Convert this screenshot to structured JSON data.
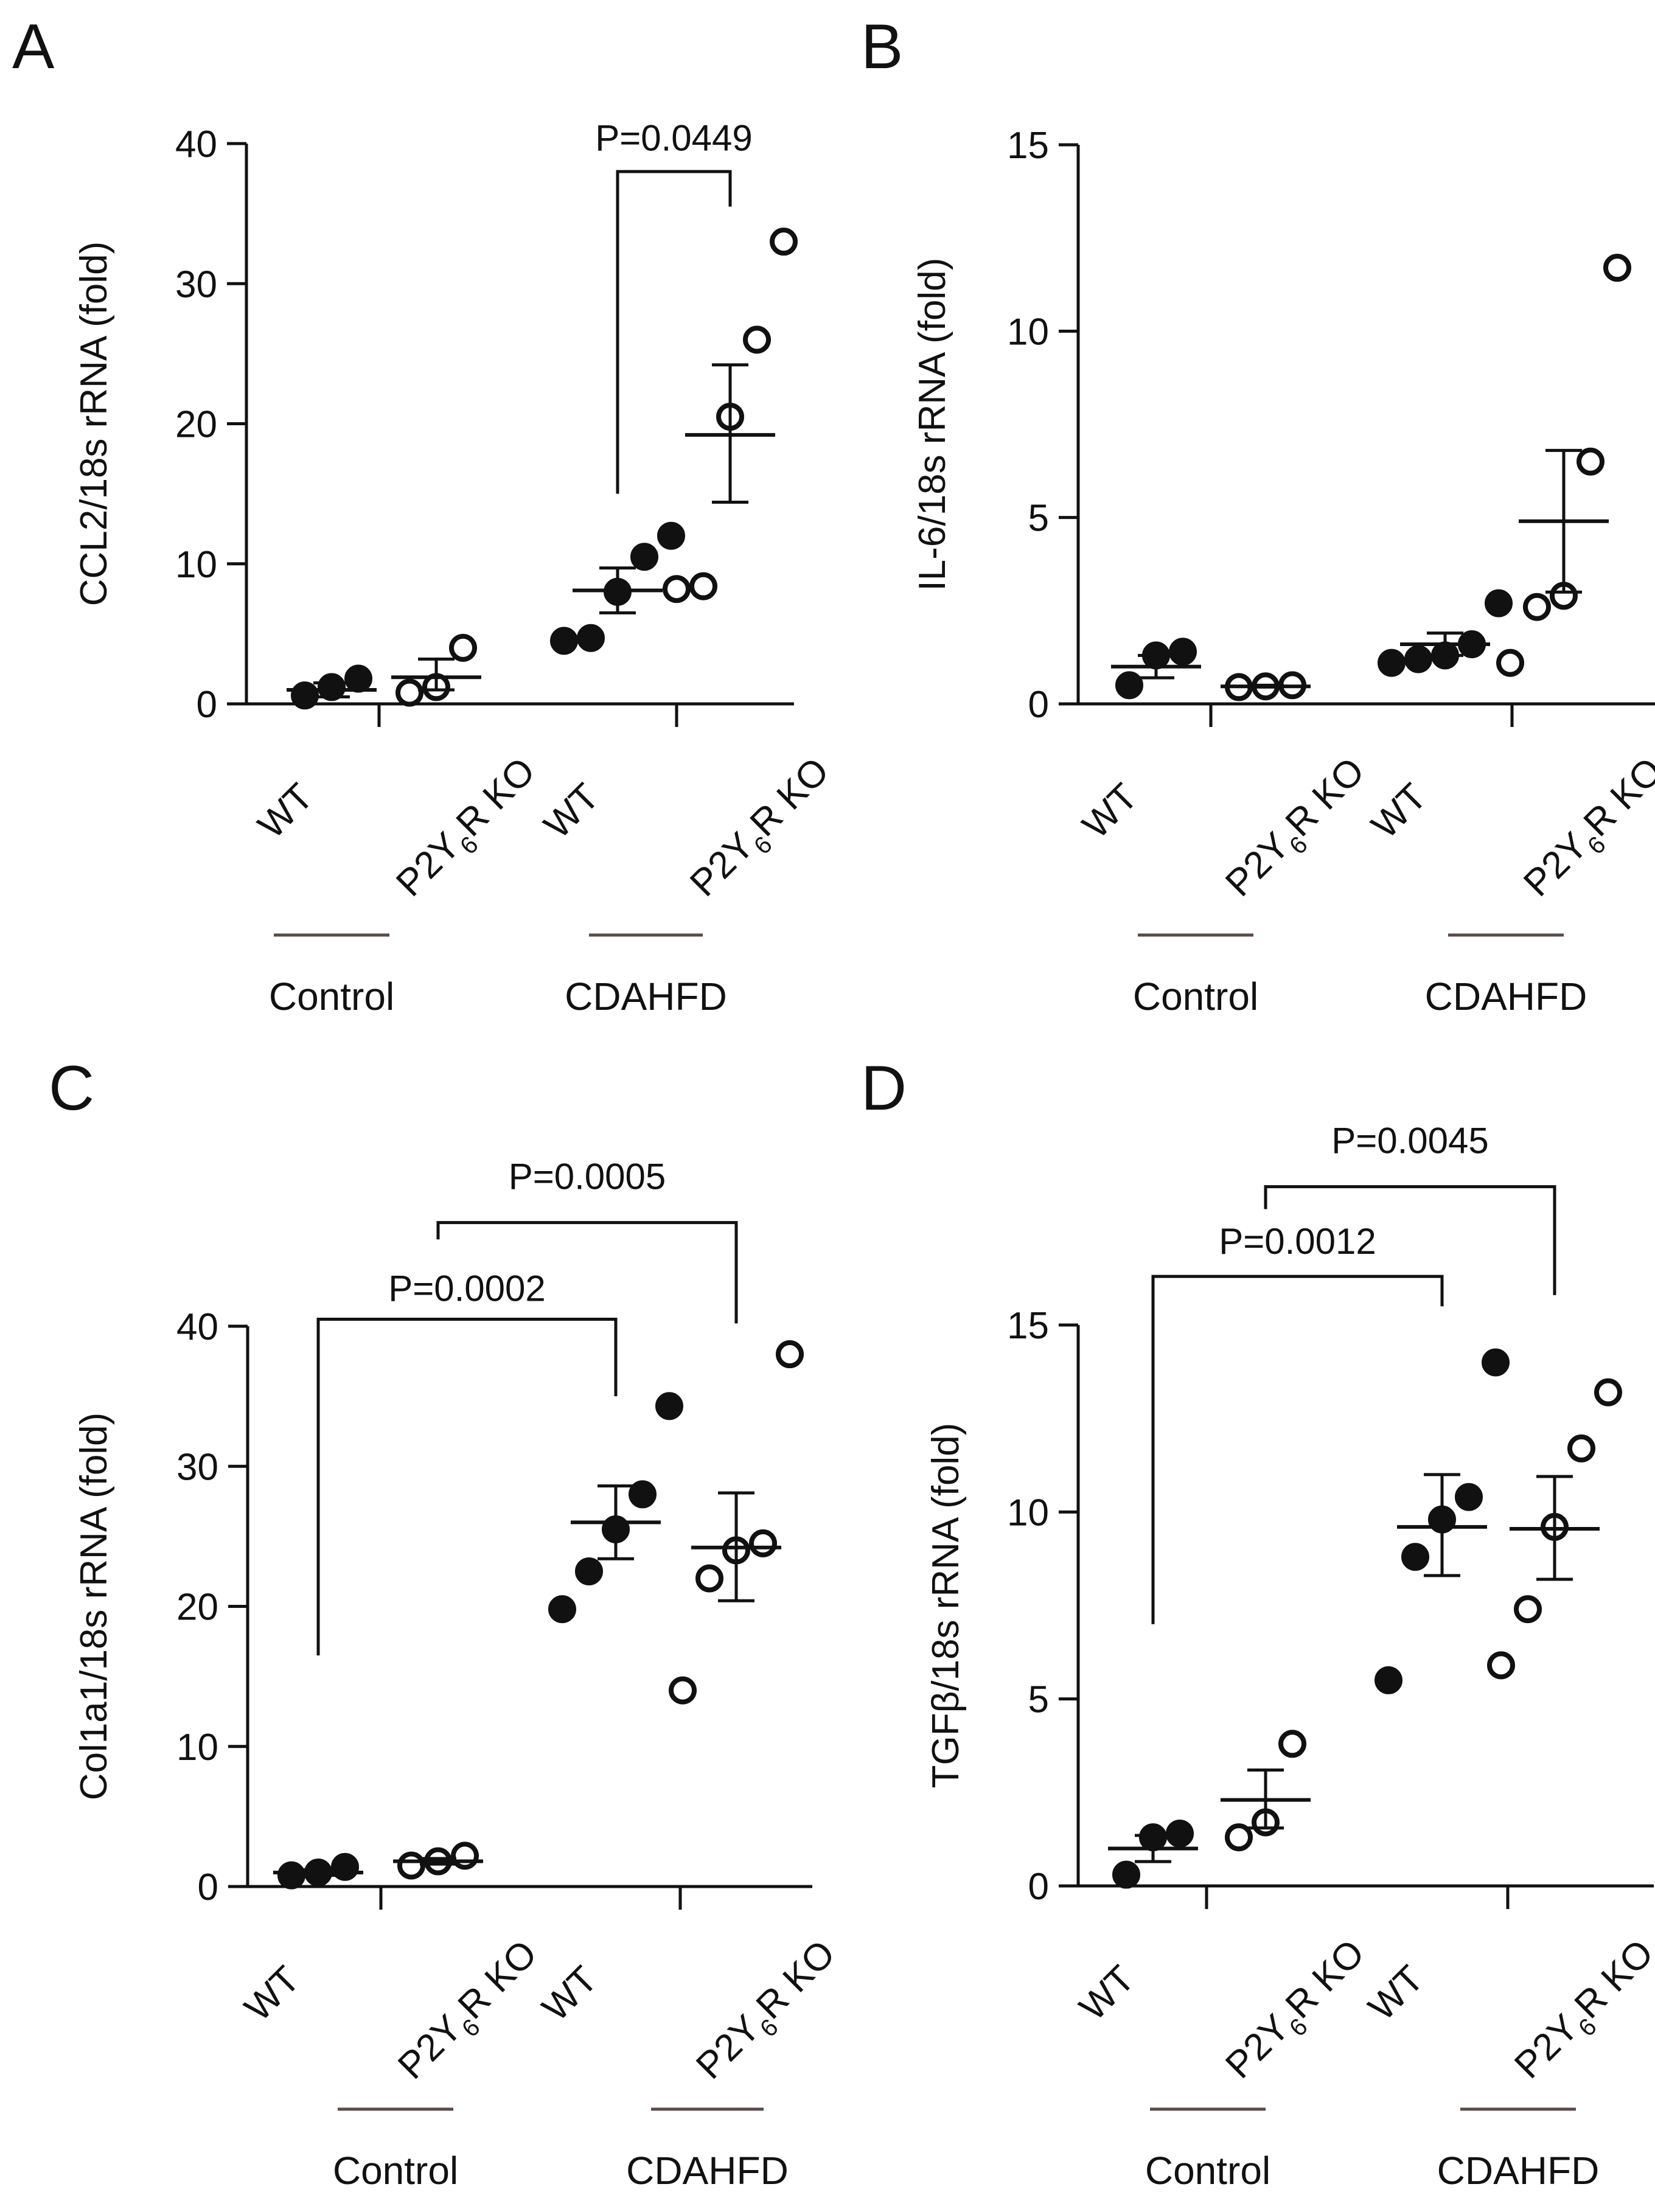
{
  "figure": {
    "panels": [
      "A",
      "B",
      "C",
      "D"
    ]
  },
  "colors": {
    "ink": "#111111",
    "group_bar": "#5a4a4a",
    "background": "#ffffff"
  },
  "chart_data": [
    {
      "panel": "A",
      "type": "scatter",
      "ylabel": "CCL2/18s rRNA (fold)",
      "ylim": [
        0,
        40
      ],
      "yticks": [
        0,
        10,
        20,
        30,
        40
      ],
      "groups": [
        "Control",
        "CDAHFD"
      ],
      "categories": [
        {
          "group": "Control",
          "genotype": "WT",
          "fill": "filled",
          "points": [
            0.6,
            1.2,
            1.8
          ],
          "mean": 1.0,
          "sem": [
            0.5,
            1.5
          ]
        },
        {
          "group": "Control",
          "genotype": "P2Y6R KO",
          "fill": "open",
          "points": [
            0.8,
            1.2,
            4.0
          ],
          "mean": 1.9,
          "sem": [
            1.0,
            3.2
          ]
        },
        {
          "group": "CDAHFD",
          "genotype": "WT",
          "fill": "filled",
          "points": [
            4.5,
            4.7,
            8.0,
            10.5,
            12.0
          ],
          "mean": 8.1,
          "sem": [
            6.5,
            9.7
          ]
        },
        {
          "group": "CDAHFD",
          "genotype": "P2Y6R KO",
          "fill": "open",
          "points": [
            8.2,
            8.4,
            20.5,
            26.0,
            33.0
          ],
          "mean": 19.2,
          "sem": [
            14.4,
            24.2
          ]
        }
      ],
      "brackets": [
        {
          "from": 2,
          "to": 3,
          "label": "P=0.0449",
          "left_y": 15.0,
          "right_y": 35.5,
          "top": 38.0,
          "label_y": 39.5
        }
      ]
    },
    {
      "panel": "B",
      "type": "scatter",
      "ylabel": "IL-6/18s rRNA (fold)",
      "ylim": [
        0,
        15
      ],
      "yticks": [
        0,
        5,
        10,
        15
      ],
      "groups": [
        "Control",
        "CDAHFD"
      ],
      "categories": [
        {
          "group": "Control",
          "genotype": "WT",
          "fill": "filled",
          "points": [
            0.5,
            1.3,
            1.4
          ],
          "mean": 1.0,
          "sem": [
            0.7,
            1.3
          ]
        },
        {
          "group": "Control",
          "genotype": "P2Y6R KO",
          "fill": "open",
          "points": [
            0.45,
            0.47,
            0.5
          ],
          "mean": 0.47,
          "sem": [
            0.45,
            0.5
          ]
        },
        {
          "group": "CDAHFD",
          "genotype": "WT",
          "fill": "filled",
          "points": [
            1.1,
            1.2,
            1.3,
            1.6,
            2.7
          ],
          "mean": 1.6,
          "sem": [
            1.3,
            1.9
          ]
        },
        {
          "group": "CDAHFD",
          "genotype": "P2Y6R KO",
          "fill": "open",
          "points": [
            1.1,
            2.6,
            2.9,
            6.5,
            11.7
          ],
          "mean": 4.9,
          "sem": [
            3.0,
            6.8
          ]
        }
      ],
      "brackets": []
    },
    {
      "panel": "C",
      "type": "scatter",
      "ylabel": "Col1a1/18s rRNA (fold)",
      "ylim": [
        0,
        40
      ],
      "yticks": [
        0,
        10,
        20,
        30,
        40
      ],
      "groups": [
        "Control",
        "CDAHFD"
      ],
      "categories": [
        {
          "group": "Control",
          "genotype": "WT",
          "fill": "filled",
          "points": [
            0.8,
            1.0,
            1.4
          ],
          "mean": 1.0,
          "sem": [
            0.8,
            1.2
          ]
        },
        {
          "group": "Control",
          "genotype": "P2Y6R KO",
          "fill": "open",
          "points": [
            1.5,
            1.8,
            2.2
          ],
          "mean": 1.8,
          "sem": [
            1.6,
            2.0
          ]
        },
        {
          "group": "CDAHFD",
          "genotype": "WT",
          "fill": "filled",
          "points": [
            19.8,
            22.5,
            25.5,
            28.0,
            34.3
          ],
          "mean": 26.0,
          "sem": [
            23.4,
            28.6
          ]
        },
        {
          "group": "CDAHFD",
          "genotype": "P2Y6R KO",
          "fill": "open",
          "points": [
            14.0,
            22.0,
            24.0,
            24.5,
            38.0
          ],
          "mean": 24.2,
          "sem": [
            20.4,
            28.1
          ]
        }
      ],
      "brackets": [
        {
          "from": 0,
          "to": 2,
          "label": "P=0.0002",
          "left_y": 16.5,
          "right_y": 35.0,
          "top": 40.5,
          "label_y": 41.8
        },
        {
          "from": 1,
          "to": 3,
          "label": "P=0.0005",
          "left_y": 46.2,
          "right_y": 40.2,
          "top": 47.4,
          "label_y": 49.8
        }
      ]
    },
    {
      "panel": "D",
      "type": "scatter",
      "ylabel": "TGFβ/18s rRNA (fold)",
      "ylim": [
        0,
        15
      ],
      "yticks": [
        0,
        5,
        10,
        15
      ],
      "groups": [
        "Control",
        "CDAHFD"
      ],
      "categories": [
        {
          "group": "Control",
          "genotype": "WT",
          "fill": "filled",
          "points": [
            0.3,
            1.3,
            1.4
          ],
          "mean": 1.0,
          "sem": [
            0.65,
            1.35
          ]
        },
        {
          "group": "Control",
          "genotype": "P2Y6R KO",
          "fill": "open",
          "points": [
            1.3,
            1.7,
            3.8
          ],
          "mean": 2.3,
          "sem": [
            1.55,
            3.1
          ]
        },
        {
          "group": "CDAHFD",
          "genotype": "WT",
          "fill": "filled",
          "points": [
            5.5,
            8.8,
            9.8,
            10.4,
            14.0
          ],
          "mean": 9.6,
          "sem": [
            8.3,
            11.0
          ]
        },
        {
          "group": "CDAHFD",
          "genotype": "P2Y6R KO",
          "fill": "open",
          "points": [
            5.9,
            7.4,
            9.6,
            11.7,
            13.2
          ],
          "mean": 9.55,
          "sem": [
            8.2,
            10.95
          ]
        }
      ],
      "brackets": [
        {
          "from": 0,
          "to": 2,
          "label": "P=0.0012",
          "left_y": 7.0,
          "right_y": 15.5,
          "top": 16.3,
          "label_y": 16.9
        },
        {
          "from": 1,
          "to": 3,
          "label": "P=0.0045",
          "left_y": 18.1,
          "right_y": 15.8,
          "top": 18.7,
          "label_y": 19.6
        }
      ]
    }
  ]
}
